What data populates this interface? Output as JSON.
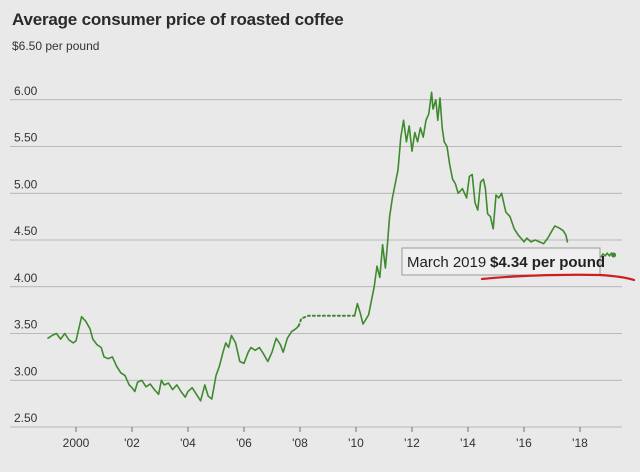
{
  "chart_data": {
    "type": "line",
    "title": "Average consumer price of roasted coffee",
    "ylabel_top": "$6.50 per pound",
    "ylim": [
      2.5,
      6.5
    ],
    "y_ticks": [
      2.5,
      3.0,
      3.5,
      4.0,
      4.5,
      5.0,
      5.5,
      6.0
    ],
    "y_tick_labels": [
      "2.50",
      "3.00",
      "3.50",
      "4.00",
      "4.50",
      "5.00",
      "5.50",
      "6.00"
    ],
    "xlim": [
      1999.0,
      2019.5
    ],
    "x_ticks": [
      2000,
      2002,
      2004,
      2006,
      2008,
      2010,
      2012,
      2014,
      2016,
      2018
    ],
    "x_tick_labels": [
      "2000",
      "'02",
      "'04",
      "'06",
      "'08",
      "'10",
      "'12",
      "'14",
      "'16",
      "'18"
    ],
    "series": [
      {
        "name": "Roasted coffee price",
        "color": "#3f8a2f",
        "segments": [
          {
            "style": "solid",
            "points": [
              [
                1999.0,
                3.45
              ],
              [
                1999.15,
                3.48
              ],
              [
                1999.3,
                3.5
              ],
              [
                1999.45,
                3.44
              ],
              [
                1999.6,
                3.5
              ],
              [
                1999.75,
                3.43
              ],
              [
                1999.9,
                3.4
              ],
              [
                2000.0,
                3.42
              ],
              [
                2000.12,
                3.58
              ],
              [
                2000.2,
                3.68
              ],
              [
                2000.35,
                3.63
              ],
              [
                2000.5,
                3.55
              ],
              [
                2000.6,
                3.44
              ],
              [
                2000.75,
                3.38
              ],
              [
                2000.9,
                3.35
              ],
              [
                2001.0,
                3.25
              ],
              [
                2001.15,
                3.23
              ],
              [
                2001.3,
                3.25
              ],
              [
                2001.45,
                3.15
              ],
              [
                2001.6,
                3.08
              ],
              [
                2001.75,
                3.05
              ],
              [
                2001.9,
                2.95
              ],
              [
                2002.0,
                2.92
              ],
              [
                2002.1,
                2.88
              ],
              [
                2002.2,
                2.98
              ],
              [
                2002.35,
                3.0
              ],
              [
                2002.5,
                2.93
              ],
              [
                2002.65,
                2.96
              ],
              [
                2002.8,
                2.9
              ],
              [
                2002.95,
                2.85
              ],
              [
                2003.05,
                3.0
              ],
              [
                2003.15,
                2.95
              ],
              [
                2003.3,
                2.97
              ],
              [
                2003.45,
                2.9
              ],
              [
                2003.6,
                2.95
              ],
              [
                2003.75,
                2.88
              ],
              [
                2003.9,
                2.82
              ],
              [
                2004.0,
                2.88
              ],
              [
                2004.15,
                2.92
              ],
              [
                2004.3,
                2.85
              ],
              [
                2004.45,
                2.78
              ],
              [
                2004.6,
                2.95
              ],
              [
                2004.72,
                2.83
              ],
              [
                2004.85,
                2.8
              ],
              [
                2005.0,
                3.05
              ],
              [
                2005.12,
                3.15
              ],
              [
                2005.25,
                3.3
              ],
              [
                2005.35,
                3.4
              ],
              [
                2005.45,
                3.35
              ],
              [
                2005.55,
                3.48
              ],
              [
                2005.7,
                3.4
              ],
              [
                2005.85,
                3.2
              ],
              [
                2006.0,
                3.18
              ],
              [
                2006.15,
                3.3
              ],
              [
                2006.25,
                3.35
              ],
              [
                2006.4,
                3.32
              ],
              [
                2006.55,
                3.35
              ],
              [
                2006.7,
                3.28
              ],
              [
                2006.85,
                3.2
              ],
              [
                2007.0,
                3.3
              ],
              [
                2007.15,
                3.45
              ],
              [
                2007.3,
                3.38
              ],
              [
                2007.4,
                3.3
              ],
              [
                2007.55,
                3.45
              ],
              [
                2007.7,
                3.52
              ],
              [
                2007.85,
                3.55
              ],
              [
                2007.95,
                3.58
              ]
            ]
          },
          {
            "style": "dotted",
            "points": [
              [
                2007.95,
                3.58
              ],
              [
                2008.05,
                3.66
              ],
              [
                2008.3,
                3.69
              ],
              [
                2009.95,
                3.69
              ]
            ]
          },
          {
            "style": "solid",
            "points": [
              [
                2009.95,
                3.69
              ],
              [
                2010.05,
                3.82
              ],
              [
                2010.15,
                3.72
              ],
              [
                2010.25,
                3.6
              ],
              [
                2010.35,
                3.65
              ],
              [
                2010.45,
                3.7
              ],
              [
                2010.55,
                3.85
              ],
              [
                2010.65,
                4.0
              ],
              [
                2010.75,
                4.22
              ],
              [
                2010.85,
                4.1
              ],
              [
                2010.95,
                4.45
              ],
              [
                2011.05,
                4.2
              ],
              [
                2011.12,
                4.45
              ],
              [
                2011.2,
                4.75
              ],
              [
                2011.3,
                4.95
              ],
              [
                2011.4,
                5.1
              ],
              [
                2011.5,
                5.25
              ],
              [
                2011.6,
                5.6
              ],
              [
                2011.7,
                5.78
              ],
              [
                2011.8,
                5.55
              ],
              [
                2011.9,
                5.72
              ],
              [
                2012.0,
                5.45
              ],
              [
                2012.1,
                5.65
              ],
              [
                2012.2,
                5.55
              ],
              [
                2012.3,
                5.7
              ],
              [
                2012.4,
                5.6
              ],
              [
                2012.5,
                5.78
              ],
              [
                2012.6,
                5.85
              ],
              [
                2012.7,
                6.08
              ],
              [
                2012.75,
                5.9
              ],
              [
                2012.85,
                6.0
              ],
              [
                2012.92,
                5.78
              ],
              [
                2013.0,
                6.02
              ],
              [
                2013.08,
                5.7
              ],
              [
                2013.15,
                5.55
              ],
              [
                2013.25,
                5.5
              ],
              [
                2013.35,
                5.3
              ],
              [
                2013.45,
                5.15
              ],
              [
                2013.55,
                5.1
              ],
              [
                2013.65,
                5.0
              ],
              [
                2013.8,
                5.05
              ],
              [
                2013.95,
                4.95
              ],
              [
                2014.05,
                5.18
              ],
              [
                2014.15,
                5.2
              ],
              [
                2014.25,
                4.9
              ],
              [
                2014.35,
                4.82
              ],
              [
                2014.45,
                5.12
              ],
              [
                2014.55,
                5.15
              ],
              [
                2014.62,
                5.05
              ],
              [
                2014.7,
                4.78
              ],
              [
                2014.8,
                4.75
              ],
              [
                2014.9,
                4.62
              ],
              [
                2015.0,
                4.98
              ],
              [
                2015.1,
                4.95
              ],
              [
                2015.2,
                5.0
              ],
              [
                2015.35,
                4.8
              ],
              [
                2015.5,
                4.75
              ],
              [
                2015.65,
                4.62
              ],
              [
                2015.8,
                4.55
              ],
              [
                2015.95,
                4.5
              ],
              [
                2016.0,
                4.48
              ],
              [
                2016.1,
                4.52
              ],
              [
                2016.25,
                4.48
              ],
              [
                2016.4,
                4.5
              ],
              [
                2016.55,
                4.48
              ],
              [
                2016.7,
                4.46
              ],
              [
                2016.85,
                4.52
              ],
              [
                2017.0,
                4.6
              ],
              [
                2017.1,
                4.65
              ],
              [
                2017.25,
                4.63
              ],
              [
                2017.4,
                4.6
              ],
              [
                2017.5,
                4.55
              ],
              [
                2017.55,
                4.48
              ]
            ]
          },
          {
            "style": "solid",
            "points": [
              [
                2018.75,
                4.32
              ],
              [
                2018.82,
                4.35
              ],
              [
                2018.9,
                4.33
              ],
              [
                2018.97,
                4.36
              ],
              [
                2019.05,
                4.33
              ],
              [
                2019.12,
                4.36
              ],
              [
                2019.2,
                4.34
              ]
            ]
          }
        ]
      }
    ],
    "annotation": {
      "label": "March 2019",
      "value_text": "$4.34 per pound",
      "x": 2019.2,
      "y": 4.34
    }
  },
  "colors": {
    "background": "#e9e9e9",
    "line": "#3f8a2f",
    "grid": "#a9a9a9",
    "underline": "#cc1f1f",
    "callout_bg": "#efefef",
    "callout_border": "#9a9a9a"
  }
}
